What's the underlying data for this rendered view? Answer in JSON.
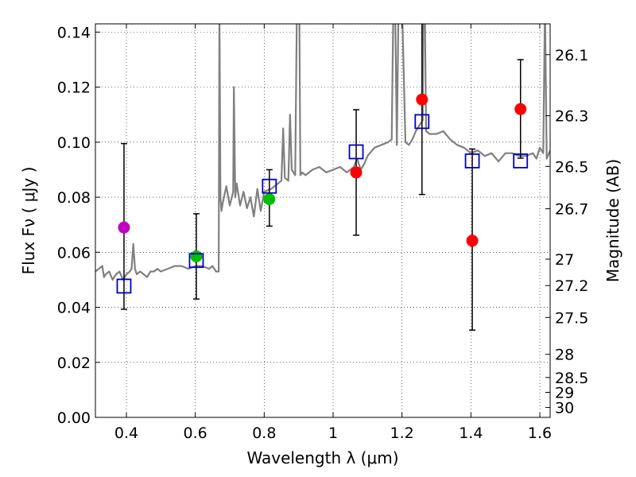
{
  "chart_data": {
    "type": "scatter",
    "xlabel": "Wavelength  λ (μm)",
    "ylabel": "Flux  Fν  ( μJy )",
    "y2label": "Magnitude (AB)",
    "xlim": [
      0.31,
      1.63
    ],
    "ylim": [
      0.0,
      0.143
    ],
    "grid": true,
    "x_ticks": [
      {
        "value": 0.4,
        "label": "0.4"
      },
      {
        "value": 0.6,
        "label": "0.6"
      },
      {
        "value": 0.8,
        "label": "0.8"
      },
      {
        "value": 1.0,
        "label": "1"
      },
      {
        "value": 1.2,
        "label": "1.2"
      },
      {
        "value": 1.4,
        "label": "1.4"
      },
      {
        "value": 1.6,
        "label": "1.6"
      }
    ],
    "y_ticks": [
      {
        "value": 0.0,
        "label": "0.00"
      },
      {
        "value": 0.02,
        "label": "0.02"
      },
      {
        "value": 0.04,
        "label": "0.04"
      },
      {
        "value": 0.06,
        "label": "0.06"
      },
      {
        "value": 0.08,
        "label": "0.08"
      },
      {
        "value": 0.1,
        "label": "0.10"
      },
      {
        "value": 0.12,
        "label": "0.12"
      },
      {
        "value": 0.14,
        "label": "0.14"
      }
    ],
    "y2_ticks": [
      {
        "label": "26.1",
        "flux": 0.1318
      },
      {
        "label": "26.3",
        "flux": 0.1096
      },
      {
        "label": "26.5",
        "flux": 0.0912
      },
      {
        "label": "26.7",
        "flux": 0.0758
      },
      {
        "label": "27",
        "flux": 0.0575
      },
      {
        "label": "27.2",
        "flux": 0.0479
      },
      {
        "label": "27.5",
        "flux": 0.0363
      },
      {
        "label": "28",
        "flux": 0.0229
      },
      {
        "label": "28.5",
        "flux": 0.0145
      },
      {
        "label": "29",
        "flux": 0.0091
      },
      {
        "label": "30",
        "flux": 0.0036
      }
    ],
    "model_spectrum": {
      "name": "model SED",
      "color": "#808080",
      "x": [
        0.31,
        0.32,
        0.33,
        0.335,
        0.34,
        0.35,
        0.36,
        0.37,
        0.38,
        0.39,
        0.4,
        0.41,
        0.415,
        0.42,
        0.425,
        0.43,
        0.44,
        0.45,
        0.46,
        0.47,
        0.48,
        0.49,
        0.5,
        0.52,
        0.54,
        0.56,
        0.58,
        0.6,
        0.62,
        0.64,
        0.65,
        0.66,
        0.668,
        0.67,
        0.673,
        0.676,
        0.68,
        0.69,
        0.7,
        0.71,
        0.712,
        0.716,
        0.72,
        0.73,
        0.74,
        0.75,
        0.76,
        0.77,
        0.78,
        0.79,
        0.8,
        0.82,
        0.84,
        0.85,
        0.855,
        0.86,
        0.87,
        0.875,
        0.88,
        0.89,
        0.895,
        0.898,
        0.902,
        0.905,
        0.91,
        0.92,
        0.94,
        0.96,
        0.98,
        1.0,
        1.02,
        1.04,
        1.06,
        1.07,
        1.08,
        1.09,
        1.1,
        1.12,
        1.14,
        1.16,
        1.17,
        1.175,
        1.18,
        1.185,
        1.19,
        1.2,
        1.21,
        1.22,
        1.23,
        1.24,
        1.25,
        1.26,
        1.262,
        1.266,
        1.27,
        1.28,
        1.3,
        1.32,
        1.34,
        1.36,
        1.38,
        1.4,
        1.42,
        1.44,
        1.46,
        1.48,
        1.5,
        1.52,
        1.54,
        1.56,
        1.58,
        1.59,
        1.6,
        1.61,
        1.615,
        1.62,
        1.63
      ],
      "y": [
        0.053,
        0.054,
        0.055,
        0.051,
        0.052,
        0.053,
        0.05,
        0.052,
        0.053,
        0.05,
        0.052,
        0.053,
        0.054,
        0.063,
        0.054,
        0.052,
        0.053,
        0.052,
        0.051,
        0.053,
        0.053,
        0.054,
        0.053,
        0.054,
        0.055,
        0.055,
        0.054,
        0.055,
        0.055,
        0.054,
        0.055,
        0.053,
        0.053,
        0.15,
        0.08,
        0.075,
        0.078,
        0.084,
        0.077,
        0.082,
        0.12,
        0.08,
        0.085,
        0.077,
        0.082,
        0.076,
        0.08,
        0.073,
        0.083,
        0.075,
        0.082,
        0.083,
        0.085,
        0.086,
        0.105,
        0.087,
        0.086,
        0.11,
        0.09,
        0.088,
        0.15,
        0.15,
        0.15,
        0.088,
        0.089,
        0.088,
        0.09,
        0.091,
        0.089,
        0.09,
        0.091,
        0.089,
        0.091,
        0.094,
        0.09,
        0.092,
        0.095,
        0.098,
        0.099,
        0.1,
        0.101,
        0.15,
        0.15,
        0.099,
        0.15,
        0.15,
        0.1,
        0.099,
        0.101,
        0.104,
        0.106,
        0.108,
        0.15,
        0.15,
        0.104,
        0.103,
        0.103,
        0.104,
        0.101,
        0.099,
        0.098,
        0.096,
        0.097,
        0.095,
        0.096,
        0.093,
        0.096,
        0.096,
        0.095,
        0.095,
        0.096,
        0.094,
        0.098,
        0.096,
        0.15,
        0.094,
        0.097
      ]
    },
    "series": [
      {
        "name": "filled points (magenta)",
        "marker": "circle",
        "color": "#bf00bf",
        "x": [
          0.393
        ],
        "y": [
          0.069
        ]
      },
      {
        "name": "filled points (green)",
        "marker": "circle",
        "color": "#00bf00",
        "x": [
          0.603,
          0.815
        ],
        "y": [
          0.0585,
          0.0793
        ]
      },
      {
        "name": "filled points (red)",
        "marker": "circle",
        "color": "#ff0000",
        "x": [
          1.067,
          1.258,
          1.404,
          1.544
        ],
        "y": [
          0.089,
          0.1155,
          0.0642,
          0.112
        ]
      },
      {
        "name": "model photometry",
        "marker": "square",
        "color": "#0000c0",
        "x": [
          0.393,
          0.603,
          0.815,
          1.067,
          1.258,
          1.404,
          1.544
        ],
        "y": [
          0.0477,
          0.057,
          0.084,
          0.0965,
          0.1075,
          0.0932,
          0.0932
        ]
      }
    ],
    "error_bars": [
      {
        "x": 0.393,
        "low": 0.0393,
        "high": 0.0995
      },
      {
        "x": 0.603,
        "low": 0.043,
        "high": 0.074
      },
      {
        "x": 0.815,
        "low": 0.0695,
        "high": 0.09
      },
      {
        "x": 1.067,
        "low": 0.0662,
        "high": 0.1118
      },
      {
        "x": 1.258,
        "low": 0.081,
        "high": 0.15
      },
      {
        "x": 1.404,
        "low": 0.0317,
        "high": 0.0975
      },
      {
        "x": 1.544,
        "low": 0.0942,
        "high": 0.13
      }
    ]
  }
}
